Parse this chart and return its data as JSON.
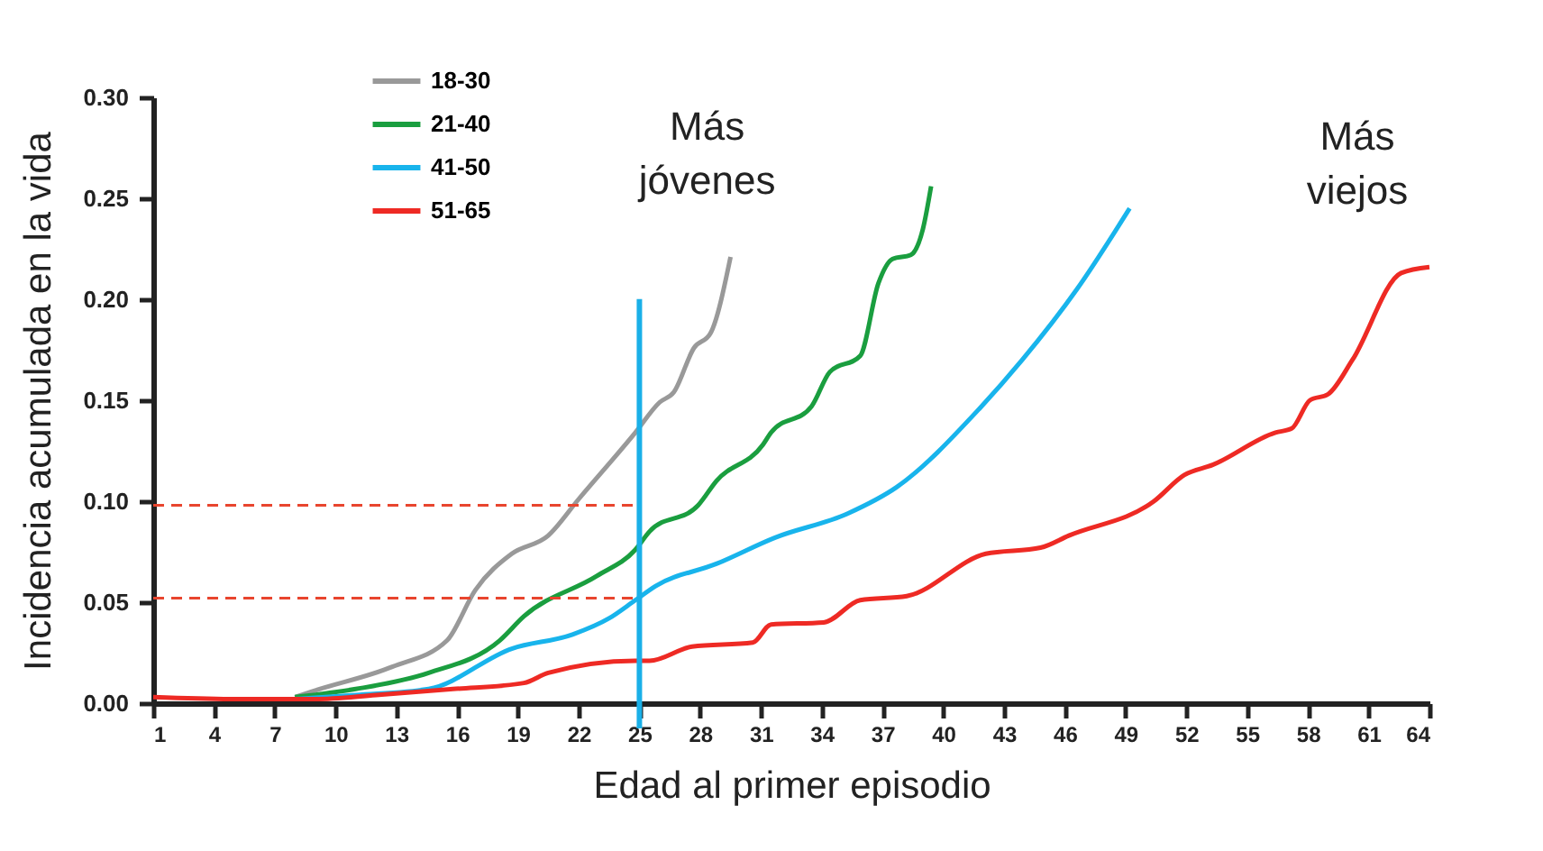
{
  "chart_data": {
    "type": "line",
    "xlabel": "Edad al primer episodio",
    "ylabel": "Incidencia acumulada en la vida",
    "xlim": [
      1,
      64
    ],
    "xticks": [
      1,
      4,
      7,
      10,
      13,
      16,
      19,
      22,
      25,
      28,
      31,
      34,
      37,
      40,
      43,
      46,
      49,
      52,
      55,
      58,
      61,
      64
    ],
    "ylim": [
      0,
      0.3
    ],
    "yticks": [
      {
        "value": 0,
        "label": "0.00"
      },
      {
        "value": 0.05,
        "label": "0.05"
      },
      {
        "value": 0.1,
        "label": "0.10"
      },
      {
        "value": 0.15,
        "label": "0.15"
      },
      {
        "value": 0.2,
        "label": "0.20"
      },
      {
        "value": 0.25,
        "label": "0.25"
      },
      {
        "value": 0.3,
        "label": "0.30"
      }
    ],
    "grid": false,
    "legend": "top left",
    "marker": "none",
    "line_style": "solid",
    "series": [
      {
        "name": "18-30",
        "color": "#999999",
        "x": [
          8,
          8.9,
          12.8,
          15.5,
          16.9,
          18.7,
          20.5,
          22,
          24.8,
          26,
          26.7,
          27.7,
          28.5,
          29.5
        ],
        "values": [
          0.003,
          0.006,
          0.018,
          0.031,
          0.056,
          0.074,
          0.083,
          0.101,
          0.134,
          0.149,
          0.154,
          0.176,
          0.183,
          0.221
        ]
      },
      {
        "name": "21-40",
        "color": "#1a9e3f",
        "x": [
          8,
          11,
          14.6,
          18.1,
          19.3,
          22.9,
          24.8,
          25.5,
          27.9,
          28.8,
          31.1,
          31.5,
          33.5,
          34.4,
          35.9,
          36.8,
          37.5,
          38.4,
          39,
          39.4
        ],
        "values": [
          0.003,
          0.007,
          0.015,
          0.031,
          0.043,
          0.063,
          0.076,
          0.085,
          0.098,
          0.11,
          0.128,
          0.134,
          0.147,
          0.164,
          0.172,
          0.208,
          0.22,
          0.222,
          0.235,
          0.256
        ]
      },
      {
        "name": "41-50",
        "color": "#18b4ec",
        "x": [
          8,
          11,
          14.6,
          18.7,
          21.7,
          23.5,
          24.8,
          25.8,
          28.8,
          31.7,
          35.3,
          37.7,
          41.8,
          43.9,
          46.6,
          49.2
        ],
        "values": [
          0.002,
          0.004,
          0.007,
          0.027,
          0.034,
          0.042,
          0.051,
          0.058,
          0.069,
          0.082,
          0.094,
          0.107,
          0.146,
          0.17,
          0.205,
          0.245
        ]
      },
      {
        "name": "51-65",
        "color": "#ee2a24",
        "x": [
          1,
          5,
          9,
          12,
          15.8,
          19.3,
          20.5,
          24.8,
          25.5,
          27.6,
          30.6,
          31.5,
          34.1,
          35.9,
          38.2,
          42.1,
          44.8,
          46.2,
          50.4,
          51.9,
          53.3,
          56.4,
          57.2,
          58.1,
          59,
          60.2,
          62.6,
          64
        ],
        "values": [
          0.003,
          0.002,
          0.002,
          0.004,
          0.007,
          0.01,
          0.015,
          0.021,
          0.021,
          0.028,
          0.03,
          0.039,
          0.04,
          0.051,
          0.053,
          0.074,
          0.077,
          0.083,
          0.1,
          0.113,
          0.118,
          0.134,
          0.136,
          0.15,
          0.153,
          0.17,
          0.213,
          0.216
        ]
      }
    ],
    "ref_lines": [
      {
        "axis": "x",
        "value": 25,
        "color": "#1ab0e8",
        "line_style": "solid"
      },
      {
        "axis": "y",
        "value": 0.098,
        "color": "#e8452e",
        "line_style": "dashed"
      },
      {
        "axis": "y",
        "value": 0.052,
        "color": "#e8452e",
        "line_style": "dashed"
      }
    ],
    "annotations": [
      {
        "text": "Más\njóvenes",
        "x": 29.5,
        "y": 0.221
      },
      {
        "text": "Más\nviejos",
        "x": 64,
        "y": 0.216
      }
    ]
  }
}
